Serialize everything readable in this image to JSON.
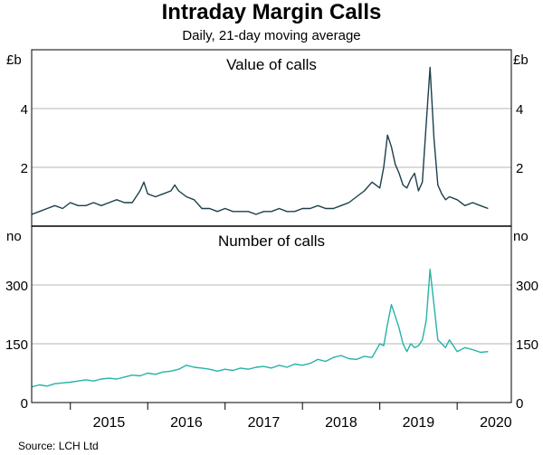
{
  "chart_data": {
    "type": "line",
    "title": "Intraday Margin Calls",
    "subtitle": "Daily, 21-day moving average",
    "source": "Source:  LCH Ltd",
    "x_tick_labels": [
      "2015",
      "2016",
      "2017",
      "2018",
      "2019",
      "2020"
    ],
    "xlim": [
      2014.5,
      2020.7
    ],
    "panels": [
      {
        "name": "value",
        "panel_title": "Value of calls",
        "unit_left": "£b",
        "unit_right": "£b",
        "ylim": [
          0,
          6
        ],
        "y_ticks": [
          2,
          4
        ],
        "y_tick_labels": [
          "2",
          "4"
        ],
        "color": "#1c3f4a",
        "series": {
          "name": "Value of calls",
          "x": [
            2014.5,
            2014.6,
            2014.7,
            2014.8,
            2014.9,
            2015.0,
            2015.1,
            2015.2,
            2015.3,
            2015.4,
            2015.5,
            2015.6,
            2015.7,
            2015.8,
            2015.85,
            2015.9,
            2015.95,
            2016.0,
            2016.1,
            2016.2,
            2016.3,
            2016.35,
            2016.4,
            2016.5,
            2016.6,
            2016.7,
            2016.8,
            2016.9,
            2017.0,
            2017.1,
            2017.2,
            2017.3,
            2017.4,
            2017.5,
            2017.6,
            2017.7,
            2017.8,
            2017.9,
            2018.0,
            2018.1,
            2018.2,
            2018.3,
            2018.4,
            2018.5,
            2018.6,
            2018.7,
            2018.8,
            2018.9,
            2019.0,
            2019.05,
            2019.1,
            2019.15,
            2019.2,
            2019.25,
            2019.3,
            2019.35,
            2019.4,
            2019.45,
            2019.5,
            2019.55,
            2019.6,
            2019.65,
            2019.7,
            2019.75,
            2019.8,
            2019.85,
            2019.9,
            2020.0,
            2020.1,
            2020.2,
            2020.3,
            2020.4
          ],
          "values": [
            0.4,
            0.5,
            0.6,
            0.7,
            0.6,
            0.8,
            0.7,
            0.7,
            0.8,
            0.7,
            0.8,
            0.9,
            0.8,
            0.8,
            1.0,
            1.2,
            1.5,
            1.1,
            1.0,
            1.1,
            1.2,
            1.4,
            1.2,
            1.0,
            0.9,
            0.6,
            0.6,
            0.5,
            0.6,
            0.5,
            0.5,
            0.5,
            0.4,
            0.5,
            0.5,
            0.6,
            0.5,
            0.5,
            0.6,
            0.6,
            0.7,
            0.6,
            0.6,
            0.7,
            0.8,
            1.0,
            1.2,
            1.5,
            1.3,
            2.0,
            3.1,
            2.7,
            2.1,
            1.8,
            1.4,
            1.3,
            1.6,
            1.8,
            1.2,
            1.5,
            3.5,
            5.4,
            3.0,
            1.4,
            1.1,
            0.9,
            1.0,
            0.9,
            0.7,
            0.8,
            0.7,
            0.6
          ]
        }
      },
      {
        "name": "number",
        "panel_title": "Number of calls",
        "unit_left": "no",
        "unit_right": "no",
        "ylim": [
          0,
          450
        ],
        "y_ticks": [
          0,
          150,
          300
        ],
        "y_tick_labels": [
          "0",
          "150",
          "300"
        ],
        "color": "#25b3a6",
        "series": {
          "name": "Number of calls",
          "x": [
            2014.5,
            2014.6,
            2014.7,
            2014.8,
            2014.9,
            2015.0,
            2015.1,
            2015.2,
            2015.3,
            2015.4,
            2015.5,
            2015.6,
            2015.7,
            2015.8,
            2015.9,
            2016.0,
            2016.1,
            2016.2,
            2016.3,
            2016.4,
            2016.5,
            2016.6,
            2016.7,
            2016.8,
            2016.9,
            2017.0,
            2017.1,
            2017.2,
            2017.3,
            2017.4,
            2017.5,
            2017.6,
            2017.7,
            2017.8,
            2017.9,
            2018.0,
            2018.1,
            2018.2,
            2018.3,
            2018.4,
            2018.5,
            2018.6,
            2018.7,
            2018.8,
            2018.9,
            2019.0,
            2019.05,
            2019.1,
            2019.15,
            2019.2,
            2019.25,
            2019.3,
            2019.35,
            2019.4,
            2019.45,
            2019.5,
            2019.55,
            2019.6,
            2019.65,
            2019.7,
            2019.75,
            2019.8,
            2019.85,
            2019.9,
            2020.0,
            2020.1,
            2020.2,
            2020.3,
            2020.4
          ],
          "values": [
            40,
            45,
            42,
            48,
            50,
            52,
            55,
            58,
            55,
            60,
            62,
            60,
            65,
            70,
            68,
            75,
            72,
            78,
            80,
            85,
            95,
            90,
            88,
            85,
            80,
            85,
            82,
            88,
            85,
            90,
            92,
            88,
            95,
            90,
            98,
            95,
            100,
            110,
            105,
            115,
            120,
            112,
            110,
            118,
            115,
            150,
            145,
            200,
            250,
            220,
            190,
            150,
            130,
            150,
            140,
            145,
            160,
            210,
            340,
            250,
            160,
            150,
            140,
            160,
            130,
            140,
            135,
            128,
            130
          ]
        }
      }
    ]
  }
}
